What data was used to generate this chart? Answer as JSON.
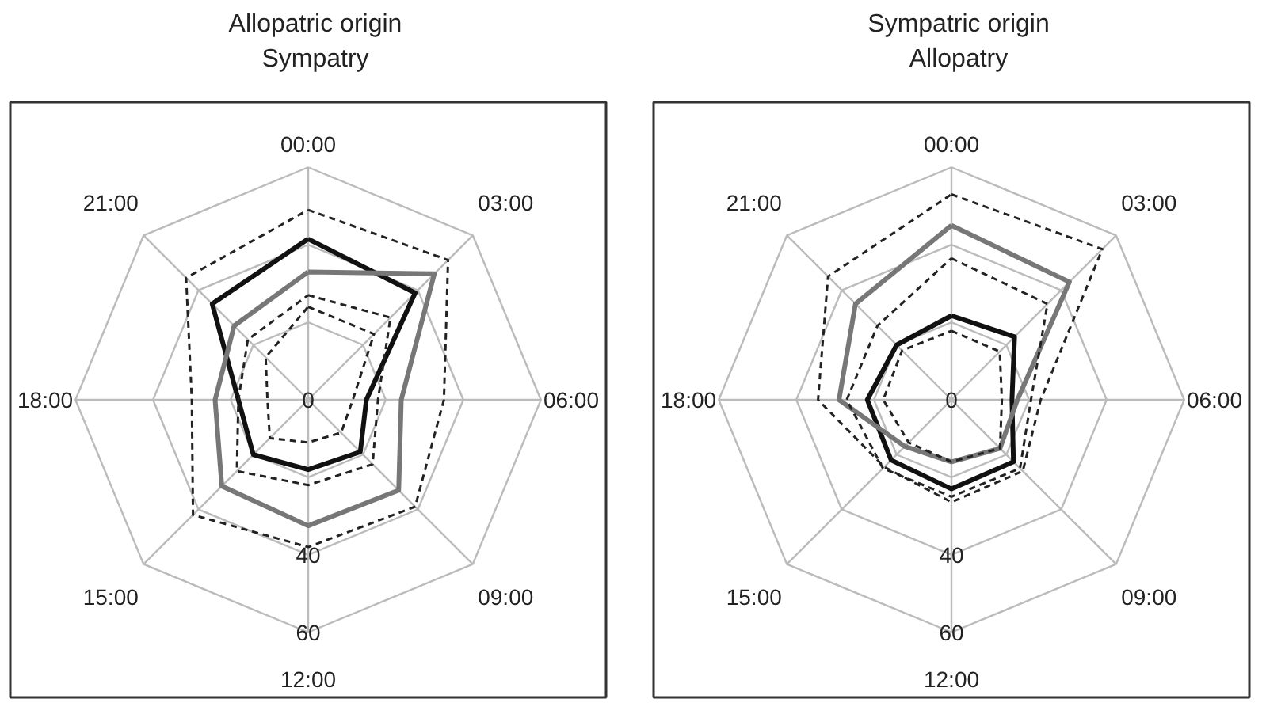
{
  "chart_data": [
    {
      "type": "radar",
      "title": "Allopatric origin",
      "subtitle": "Sympatry",
      "categories": [
        "00:00",
        "03:00",
        "06:00",
        "09:00",
        "12:00",
        "15:00",
        "18:00",
        "21:00"
      ],
      "ylim": [
        0,
        60
      ],
      "yticks": [
        0,
        40,
        60
      ],
      "grid": true,
      "series": [
        {
          "color": "#111111",
          "line_style": "solid",
          "values": [
            41.5,
            39,
            15,
            19,
            18,
            20,
            18,
            35
          ]
        },
        {
          "color": "#777777",
          "line_style": "solid",
          "values": [
            33,
            46,
            24,
            33,
            32.5,
            31.5,
            24,
            27
          ]
        },
        {
          "color": "#222222",
          "line_style": "dashed",
          "values": [
            49,
            51,
            35,
            39,
            38,
            42,
            30,
            44.5
          ]
        },
        {
          "color": "#222222",
          "line_style": "dashed",
          "values": [
            27,
            30,
            18,
            23.5,
            22,
            26,
            18,
            22
          ]
        },
        {
          "color": "#222222",
          "line_style": "dashed",
          "values": [
            24,
            24,
            11.5,
            12,
            11,
            14,
            10.5,
            15.5
          ]
        }
      ]
    },
    {
      "type": "radar",
      "title": "Sympatric origin",
      "subtitle": "Allopatry",
      "categories": [
        "00:00",
        "03:00",
        "06:00",
        "09:00",
        "12:00",
        "15:00",
        "18:00",
        "21:00"
      ],
      "ylim": [
        0,
        60
      ],
      "yticks": [
        0,
        40,
        60
      ],
      "grid": true,
      "series": [
        {
          "color": "#111111",
          "line_style": "solid",
          "values": [
            21.7,
            23,
            15.6,
            22.6,
            23,
            22,
            21.7,
            20
          ]
        },
        {
          "color": "#777777",
          "line_style": "solid",
          "values": [
            45,
            43,
            17,
            17.7,
            16,
            17,
            29,
            35
          ]
        },
        {
          "color": "#222222",
          "line_style": "dashed",
          "values": [
            53,
            55,
            23,
            26,
            26.4,
            24.5,
            34.4,
            45
          ]
        },
        {
          "color": "#222222",
          "line_style": "dashed",
          "values": [
            36.5,
            35,
            20.5,
            25,
            25,
            25,
            27,
            27
          ]
        },
        {
          "color": "#222222",
          "line_style": "dashed",
          "values": [
            17.8,
            17.6,
            13,
            17.7,
            16,
            15.6,
            17.6,
            18
          ]
        }
      ]
    }
  ]
}
